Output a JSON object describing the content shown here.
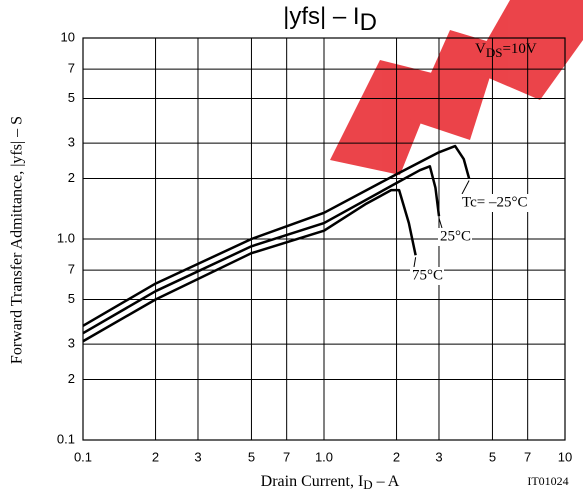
{
  "chart_data": {
    "type": "line",
    "title": "|yfs|  –  I",
    "title_sub": "D",
    "annotation": "V",
    "annotation_sub": "DS",
    "annotation_rest": "=10V",
    "x_label": "Drain Current, I",
    "x_label_sub": "D",
    "x_label_rest": "  –  A",
    "y_label": "Forward Transfer Admittance, |yfs|  –  S",
    "code": "IT01024",
    "log_x": true,
    "log_y": true,
    "grid": true,
    "xlim": [
      0.1,
      10
    ],
    "ylim": [
      0.1,
      10
    ],
    "xticks": [
      0.1,
      {
        "value": 0.2,
        "label": "2"
      },
      {
        "value": 0.3,
        "label": "3"
      },
      {
        "value": 0.5,
        "label": "5"
      },
      {
        "value": 0.7,
        "label": "7"
      },
      {
        "value": 1,
        "label": "1.0"
      },
      2,
      3,
      5,
      7,
      10
    ],
    "yticks": [
      0.1,
      {
        "value": 0.2,
        "label": "2"
      },
      {
        "value": 0.3,
        "label": "3"
      },
      {
        "value": 0.5,
        "label": "5"
      },
      {
        "value": 0.7,
        "label": "7"
      },
      {
        "value": 1,
        "label": "1.0"
      },
      2,
      3,
      5,
      7,
      10
    ],
    "series": [
      {
        "name": "Tc= –25°C",
        "color": "#000000",
        "x": [
          0.1,
          0.2,
          0.5,
          1,
          2,
          3,
          3.5,
          3.8,
          4.0
        ],
        "values": [
          0.37,
          0.6,
          1.0,
          1.35,
          2.1,
          2.7,
          2.9,
          2.5,
          2.0
        ]
      },
      {
        "name": "25°C",
        "color": "#000000",
        "x": [
          0.1,
          0.2,
          0.5,
          1,
          2,
          2.5,
          2.75,
          2.9,
          3.0
        ],
        "values": [
          0.34,
          0.55,
          0.92,
          1.2,
          1.9,
          2.2,
          2.3,
          1.8,
          1.3
        ]
      },
      {
        "name": "75°C",
        "color": "#000000",
        "x": [
          0.1,
          0.2,
          0.5,
          1,
          1.5,
          1.9,
          2.05,
          2.25,
          2.4
        ],
        "values": [
          0.31,
          0.5,
          0.85,
          1.1,
          1.5,
          1.75,
          1.75,
          1.2,
          0.83
        ]
      }
    ]
  }
}
